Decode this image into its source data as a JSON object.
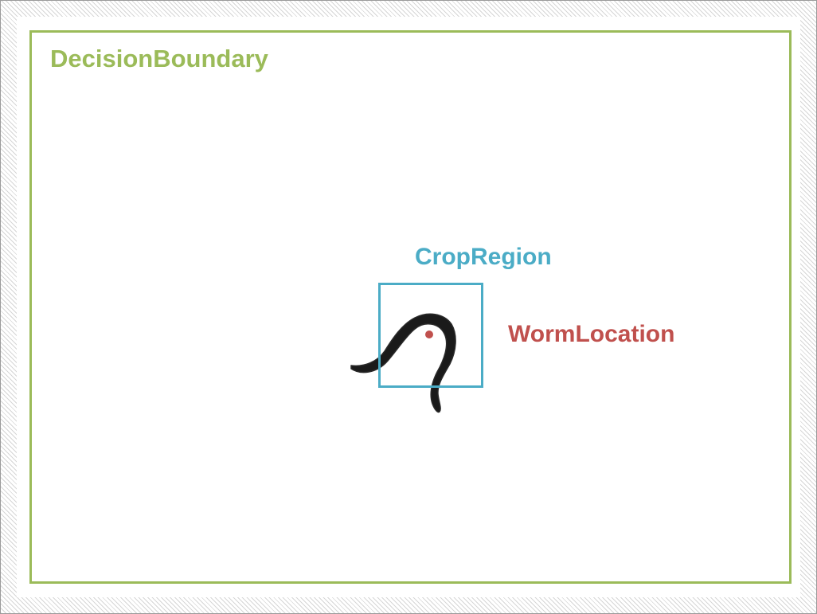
{
  "labels": {
    "decision_boundary": "DecisionBoundary",
    "crop_region": "CropRegion",
    "worm_location": "WormLocation"
  },
  "colors": {
    "decision_boundary": "#9bbb59",
    "crop_region": "#4bacc6",
    "worm_location": "#c0504d",
    "worm_body": "#1a1a1a"
  }
}
